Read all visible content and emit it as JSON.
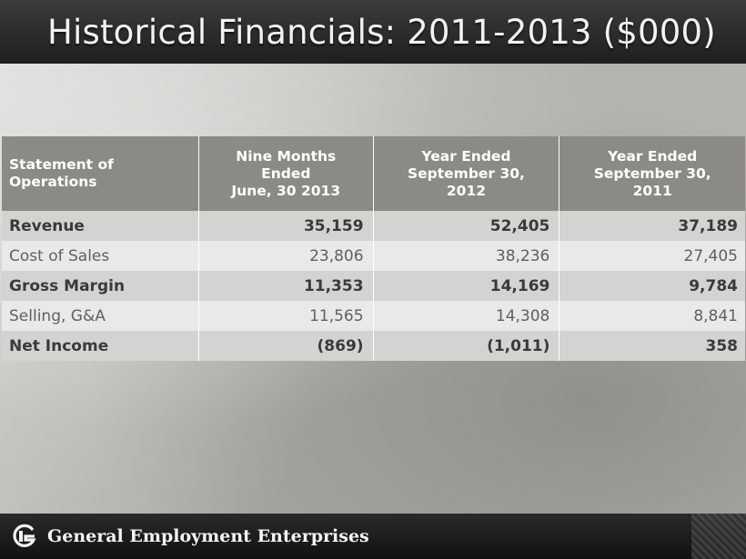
{
  "title": "Historical Financials: 2011-2013 ($000)",
  "table": {
    "headers": [
      {
        "lines": [
          "Statement of",
          "Operations"
        ]
      },
      {
        "lines": [
          "Nine Months",
          "Ended",
          "June, 30 2013"
        ]
      },
      {
        "lines": [
          "Year Ended",
          "September 30,",
          "2012"
        ]
      },
      {
        "lines": [
          "Year Ended",
          "September 30,",
          "2011"
        ]
      }
    ],
    "rows": [
      {
        "label": "Revenue",
        "values": [
          "35,159",
          "52,405",
          "37,189"
        ],
        "style": "bold"
      },
      {
        "label": "Cost of Sales",
        "values": [
          "23,806",
          "38,236",
          "27,405"
        ],
        "style": "light"
      },
      {
        "label": "Gross Margin",
        "values": [
          "11,353",
          "14,169",
          "9,784"
        ],
        "style": "bold"
      },
      {
        "label": "Selling, G&A",
        "values": [
          "11,565",
          "14,308",
          "8,841"
        ],
        "style": "light"
      },
      {
        "label": "Net Income",
        "values": [
          "(869)",
          "(1,011)",
          "358"
        ],
        "style": "bold"
      }
    ]
  },
  "footer": {
    "company": "General Employment Enterprises",
    "logo_icon": "ge-logo-icon"
  },
  "colors": {
    "title_bar": "#2b2b2b",
    "header_bg": "#8b8a84",
    "bold_row_bg": "#d3d3d1",
    "light_row_bg": "#e9e9e8"
  }
}
